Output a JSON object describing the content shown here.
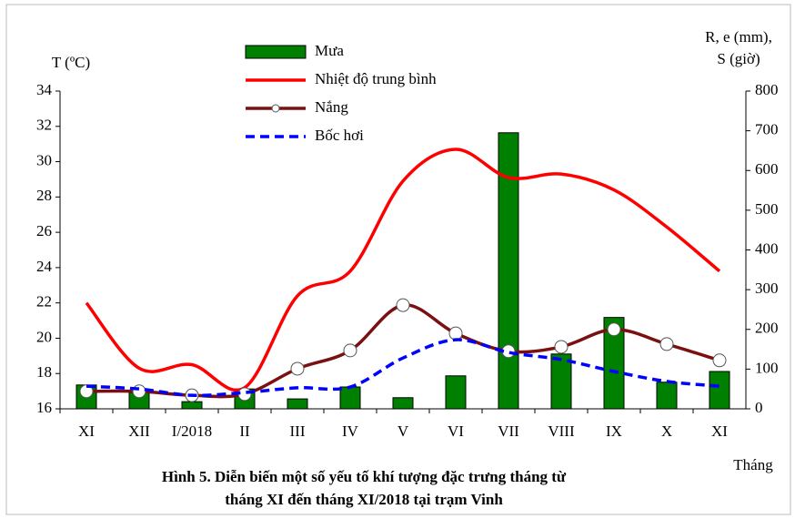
{
  "chart_data": {
    "type": "combo",
    "caption": [
      "Hình 5. Diễn biến một số yếu tố khí tượng đặc trưng tháng từ",
      "tháng XI đến tháng XI/2018 tại trạm Vinh"
    ],
    "ylabel": "T (ºC)",
    "y2label": [
      "R, e (mm),",
      "S (giờ)"
    ],
    "xlabel": "Tháng",
    "categories": [
      "XI",
      "XII",
      "I/2018",
      "II",
      "III",
      "IV",
      "V",
      "VI",
      "VII",
      "VIII",
      "IX",
      "X",
      "XI"
    ],
    "ylim": [
      16,
      34
    ],
    "yticks": [
      16,
      18,
      20,
      22,
      24,
      26,
      28,
      30,
      32,
      34
    ],
    "y2lim": [
      0,
      800
    ],
    "y2ticks": [
      0,
      100,
      200,
      300,
      400,
      500,
      600,
      700,
      800
    ],
    "series": [
      {
        "name": "Mưa",
        "type": "bar",
        "axis": "y2",
        "color": "#008000",
        "values": [
          60,
          41,
          18,
          50,
          25,
          55,
          28,
          83,
          695,
          138,
          230,
          67,
          94
        ]
      },
      {
        "name": "Nhiệt độ trung bình",
        "type": "line",
        "axis": "y",
        "color": "#ff0000",
        "values": [
          22.0,
          18.3,
          18.5,
          17.2,
          22.4,
          23.8,
          28.9,
          30.7,
          29.1,
          29.3,
          28.4,
          26.3,
          23.8
        ]
      },
      {
        "name": "Nắng",
        "type": "line",
        "axis": "y2",
        "color": "#7b1010",
        "markers": true,
        "values": [
          44,
          44,
          34,
          37,
          101,
          147,
          261,
          190,
          145,
          156,
          200,
          163,
          122
        ]
      },
      {
        "name": "Bốc hơi",
        "type": "line",
        "axis": "y2",
        "color": "#0000ff",
        "dashed": true,
        "values": [
          57,
          50,
          34,
          41,
          53,
          55,
          128,
          174,
          142,
          124,
          94,
          69,
          57
        ]
      }
    ]
  }
}
